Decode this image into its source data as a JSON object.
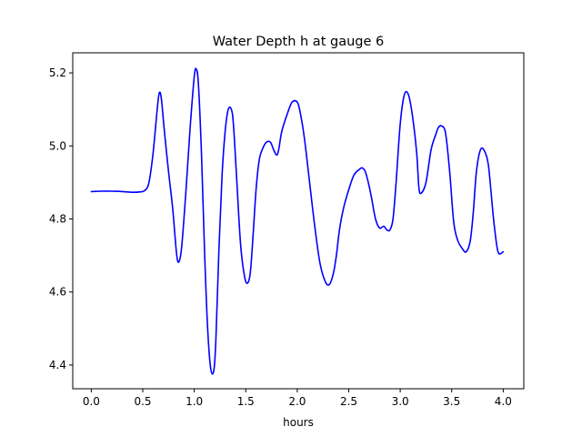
{
  "chart_data": {
    "type": "line",
    "title": "Water Depth h at gauge 6",
    "xlabel": "hours",
    "ylabel": "",
    "xlim": [
      -0.18,
      4.2
    ],
    "ylim": [
      4.335,
      5.255
    ],
    "xticks": [
      0.0,
      0.5,
      1.0,
      1.5,
      2.0,
      2.5,
      3.0,
      3.5,
      4.0
    ],
    "xtick_labels": [
      "0.0",
      "0.5",
      "1.0",
      "1.5",
      "2.0",
      "2.5",
      "3.0",
      "3.5",
      "4.0"
    ],
    "yticks": [
      4.4,
      4.6,
      4.8,
      5.0,
      5.2
    ],
    "ytick_labels": [
      "4.4",
      "4.6",
      "4.8",
      "5.0",
      "5.2"
    ],
    "grid": false,
    "series": [
      {
        "color": "#0000ff",
        "x": [
          0.0,
          0.1,
          0.2,
          0.3,
          0.4,
          0.47,
          0.52,
          0.56,
          0.6,
          0.64,
          0.66,
          0.68,
          0.71,
          0.75,
          0.79,
          0.83,
          0.855,
          0.88,
          0.92,
          0.96,
          1.0,
          1.02,
          1.04,
          1.07,
          1.1,
          1.13,
          1.16,
          1.19,
          1.21,
          1.24,
          1.27,
          1.3,
          1.33,
          1.36,
          1.38,
          1.41,
          1.45,
          1.49,
          1.52,
          1.545,
          1.57,
          1.6,
          1.63,
          1.66,
          1.7,
          1.74,
          1.77,
          1.8,
          1.82,
          1.85,
          1.9,
          1.95,
          2.0,
          2.03,
          2.07,
          2.12,
          2.17,
          2.22,
          2.27,
          2.31,
          2.35,
          2.38,
          2.41,
          2.45,
          2.5,
          2.55,
          2.6,
          2.63,
          2.66,
          2.69,
          2.72,
          2.76,
          2.8,
          2.84,
          2.87,
          2.9,
          2.93,
          2.96,
          3.0,
          3.04,
          3.08,
          3.12,
          3.16,
          3.18,
          3.2,
          3.25,
          3.3,
          3.35,
          3.37,
          3.4,
          3.44,
          3.48,
          3.52,
          3.56,
          3.6,
          3.64,
          3.68,
          3.71,
          3.74,
          3.78,
          3.82,
          3.855,
          3.88,
          3.91,
          3.95,
          4.0
        ],
        "y": [
          4.875,
          4.876,
          4.876,
          4.875,
          4.873,
          4.874,
          4.878,
          4.9,
          4.98,
          5.1,
          5.145,
          5.13,
          5.04,
          4.93,
          4.83,
          4.7,
          4.685,
          4.73,
          4.88,
          5.05,
          5.19,
          5.21,
          5.17,
          4.98,
          4.71,
          4.5,
          4.39,
          4.385,
          4.47,
          4.72,
          4.92,
          5.04,
          5.1,
          5.1,
          5.06,
          4.92,
          4.73,
          4.64,
          4.625,
          4.655,
          4.75,
          4.88,
          4.96,
          4.99,
          5.01,
          5.01,
          4.99,
          4.975,
          4.99,
          5.04,
          5.085,
          5.12,
          5.12,
          5.09,
          5.02,
          4.9,
          4.78,
          4.68,
          4.63,
          4.62,
          4.65,
          4.7,
          4.77,
          4.83,
          4.88,
          4.92,
          4.935,
          4.94,
          4.93,
          4.9,
          4.86,
          4.8,
          4.775,
          4.78,
          4.77,
          4.77,
          4.8,
          4.9,
          5.06,
          5.14,
          5.14,
          5.08,
          4.98,
          4.89,
          4.87,
          4.9,
          4.99,
          5.035,
          5.05,
          5.055,
          5.035,
          4.93,
          4.79,
          4.74,
          4.72,
          4.71,
          4.74,
          4.82,
          4.93,
          4.99,
          4.985,
          4.95,
          4.88,
          4.79,
          4.71,
          4.71
        ]
      }
    ]
  }
}
